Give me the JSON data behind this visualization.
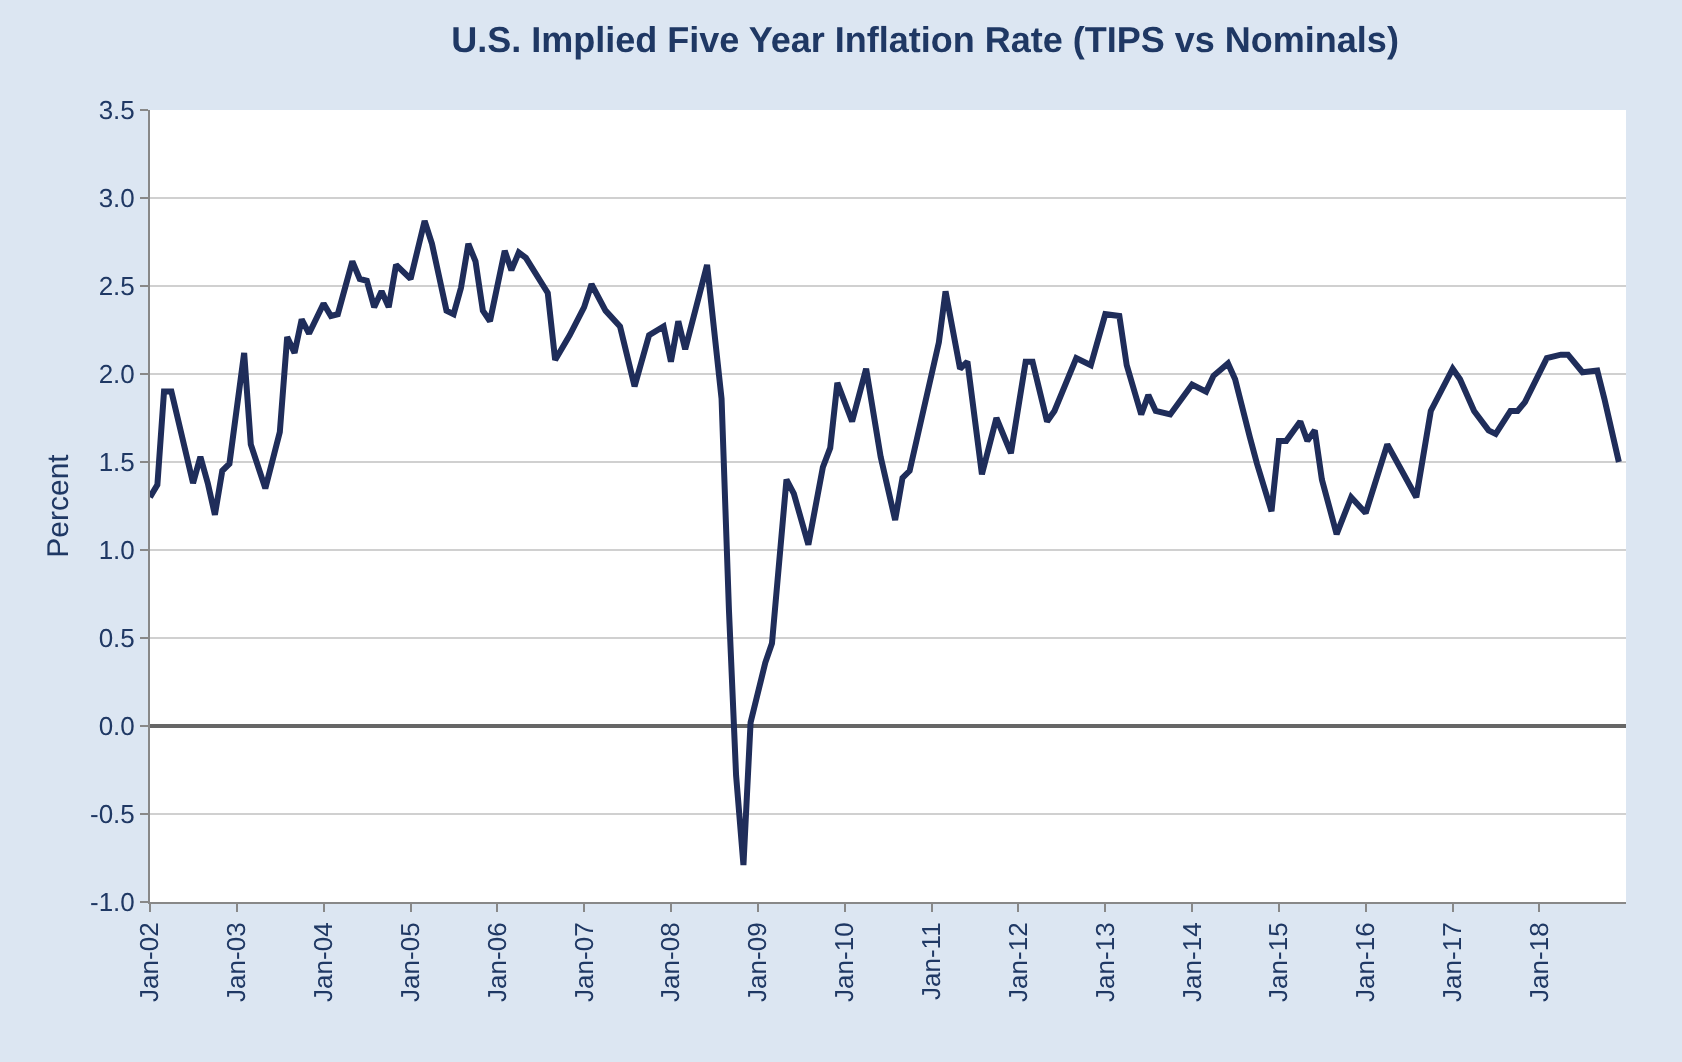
{
  "chart_data": {
    "type": "line",
    "title": "U.S. Implied Five Year Inflation Rate (TIPS vs Nominals)",
    "ylabel": "Percent",
    "x": [
      "2002-01",
      "2002-02",
      "2002-03",
      "2002-04",
      "2002-07",
      "2002-08",
      "2002-09",
      "2002-10",
      "2002-11",
      "2002-12",
      "2003-02",
      "2003-03",
      "2003-05",
      "2003-07",
      "2003-08",
      "2003-09",
      "2003-10",
      "2003-11",
      "2004-01",
      "2004-02",
      "2004-03",
      "2004-05",
      "2004-06",
      "2004-07",
      "2004-08",
      "2004-09",
      "2004-10",
      "2004-11",
      "2005-01",
      "2005-03",
      "2005-04",
      "2005-06",
      "2005-07",
      "2005-08",
      "2005-09",
      "2005-10",
      "2005-11",
      "2005-12",
      "2006-02",
      "2006-03",
      "2006-04",
      "2006-05",
      "2006-08",
      "2006-09",
      "2006-11",
      "2007-01",
      "2007-02",
      "2007-04",
      "2007-06",
      "2007-08",
      "2007-10",
      "2007-12",
      "2008-01",
      "2008-02",
      "2008-03",
      "2008-06",
      "2008-08",
      "2008-09",
      "2008-10",
      "2008-11",
      "2008-12",
      "2009-02",
      "2009-03",
      "2009-05",
      "2009-06",
      "2009-08",
      "2009-10",
      "2009-11",
      "2009-12",
      "2010-02",
      "2010-04",
      "2010-06",
      "2010-08",
      "2010-09",
      "2010-10",
      "2011-02",
      "2011-03",
      "2011-05",
      "2011-06",
      "2011-08",
      "2011-10",
      "2011-12",
      "2012-02",
      "2012-03",
      "2012-05",
      "2012-06",
      "2012-09",
      "2012-11",
      "2013-01",
      "2013-03",
      "2013-04",
      "2013-06",
      "2013-07",
      "2013-08",
      "2013-10",
      "2014-01",
      "2014-03",
      "2014-04",
      "2014-06",
      "2014-07",
      "2014-09",
      "2014-10",
      "2014-12",
      "2015-01",
      "2015-02",
      "2015-04",
      "2015-05",
      "2015-06",
      "2015-07",
      "2015-09",
      "2015-11",
      "2016-01",
      "2016-04",
      "2016-06",
      "2016-08",
      "2016-10",
      "2017-01",
      "2017-02",
      "2017-04",
      "2017-06",
      "2017-07",
      "2017-09",
      "2017-10",
      "2017-11",
      "2018-02",
      "2018-04",
      "2018-05",
      "2018-07",
      "2018-09",
      "2018-10",
      "2018-12"
    ],
    "series": [
      {
        "color": "#1f2d5a",
        "values": [
          1.3,
          1.37,
          1.9,
          1.9,
          1.38,
          1.53,
          1.38,
          1.2,
          1.45,
          1.49,
          2.12,
          1.6,
          1.35,
          1.67,
          2.21,
          2.12,
          2.31,
          2.23,
          2.4,
          2.33,
          2.34,
          2.64,
          2.54,
          2.53,
          2.38,
          2.47,
          2.38,
          2.62,
          2.54,
          2.87,
          2.74,
          2.36,
          2.34,
          2.49,
          2.74,
          2.64,
          2.36,
          2.3,
          2.7,
          2.59,
          2.69,
          2.66,
          2.46,
          2.08,
          2.22,
          2.38,
          2.51,
          2.36,
          2.27,
          1.93,
          2.22,
          2.27,
          2.07,
          2.3,
          2.14,
          2.62,
          1.86,
          0.66,
          -0.28,
          -0.79,
          0.02,
          0.36,
          0.47,
          1.4,
          1.32,
          1.03,
          1.47,
          1.58,
          1.95,
          1.73,
          2.03,
          1.53,
          1.17,
          1.41,
          1.45,
          2.18,
          2.47,
          2.03,
          2.07,
          1.43,
          1.75,
          1.55,
          2.07,
          2.07,
          1.73,
          1.79,
          2.09,
          2.05,
          2.34,
          2.33,
          2.05,
          1.77,
          1.88,
          1.79,
          1.77,
          1.94,
          1.9,
          1.99,
          2.06,
          1.97,
          1.64,
          1.49,
          1.22,
          1.62,
          1.62,
          1.73,
          1.62,
          1.68,
          1.4,
          1.09,
          1.3,
          1.21,
          1.6,
          1.45,
          1.3,
          1.79,
          2.03,
          1.97,
          1.79,
          1.68,
          1.66,
          1.79,
          1.79,
          1.84,
          2.09,
          2.11,
          2.11,
          2.01,
          2.02,
          1.86,
          1.5
        ]
      }
    ],
    "xlim": [
      "2002-01-01",
      "2018-12-31"
    ],
    "xticks": [
      {
        "value": "2002-01",
        "label": "Jan-02"
      },
      {
        "value": "2003-01",
        "label": "Jan-03"
      },
      {
        "value": "2004-01",
        "label": "Jan-04"
      },
      {
        "value": "2005-01",
        "label": "Jan-05"
      },
      {
        "value": "2006-01",
        "label": "Jan-06"
      },
      {
        "value": "2007-01",
        "label": "Jan-07"
      },
      {
        "value": "2008-01",
        "label": "Jan-08"
      },
      {
        "value": "2009-01",
        "label": "Jan-09"
      },
      {
        "value": "2010-01",
        "label": "Jan-10"
      },
      {
        "value": "2011-01",
        "label": "Jan-11"
      },
      {
        "value": "2012-01",
        "label": "Jan-12"
      },
      {
        "value": "2013-01",
        "label": "Jan-13"
      },
      {
        "value": "2014-01",
        "label": "Jan-14"
      },
      {
        "value": "2015-01",
        "label": "Jan-15"
      },
      {
        "value": "2016-01",
        "label": "Jan-16"
      },
      {
        "value": "2017-01",
        "label": "Jan-17"
      },
      {
        "value": "2018-01",
        "label": "Jan-18"
      }
    ],
    "ylim": [
      -1.0,
      3.5
    ],
    "yticks": [
      {
        "value": -1,
        "label": "-1.0"
      },
      {
        "value": -0.5,
        "label": "-0.5"
      },
      {
        "value": 0,
        "label": "0.0"
      },
      {
        "value": 0.5,
        "label": "0.5"
      },
      {
        "value": 1,
        "label": "1.0"
      },
      {
        "value": 1.5,
        "label": "1.5"
      },
      {
        "value": 2,
        "label": "2.0"
      },
      {
        "value": 2.5,
        "label": "2.5"
      },
      {
        "value": 3,
        "label": "3.0"
      },
      {
        "value": 3.5,
        "label": "3.5"
      }
    ],
    "grid": "y",
    "marker": "none",
    "line_style": "solid"
  }
}
